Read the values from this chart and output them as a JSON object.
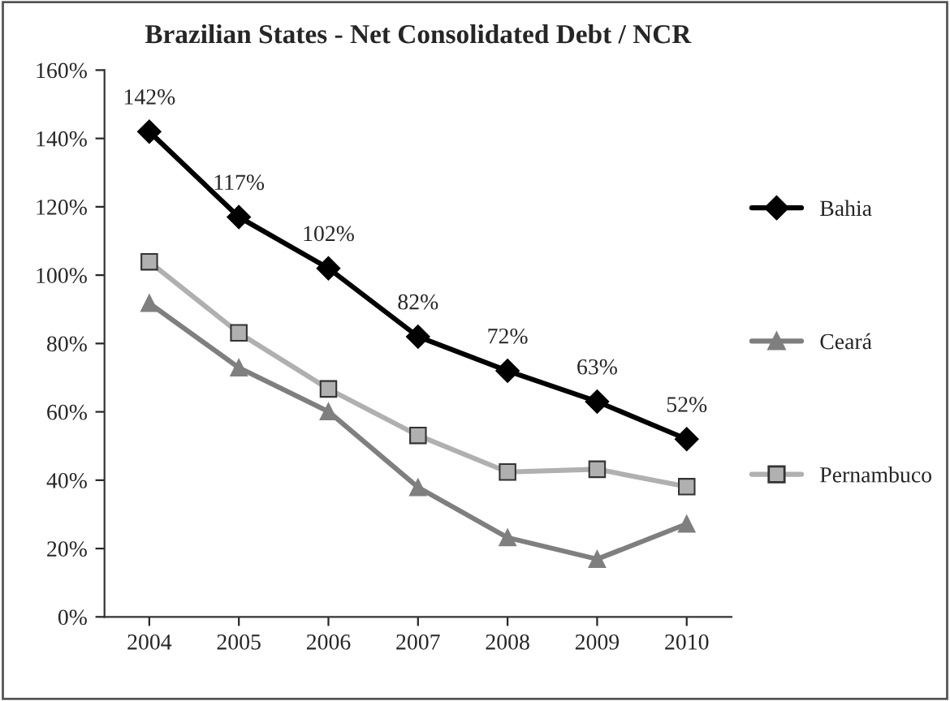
{
  "chart_data": {
    "type": "line",
    "title": "Brazilian States - Net Consolidated Debt / NCR",
    "categories": [
      "2004",
      "2005",
      "2006",
      "2007",
      "2008",
      "2009",
      "2010"
    ],
    "series": [
      {
        "name": "Bahia",
        "color": "#000000",
        "marker": "diamond",
        "values": [
          142,
          117,
          102,
          82,
          72,
          63,
          52
        ],
        "value_labels": [
          "142%",
          "117%",
          "102%",
          "82%",
          "72%",
          "63%",
          "52%"
        ]
      },
      {
        "name": "Ceará",
        "color": "#7f7f7f",
        "marker": "triangle",
        "values": [
          91.8,
          72.9,
          60.1,
          37.9,
          23.2,
          16.9,
          27.2
        ]
      },
      {
        "name": "Pernambuco",
        "color": "#b0b0b0",
        "marker": "square",
        "values": [
          103.9,
          83.1,
          66.7,
          53.1,
          42.4,
          43.2,
          38.1
        ]
      }
    ],
    "ylim": [
      0,
      160
    ],
    "yticks": [
      {
        "value": 0,
        "label": "0%"
      },
      {
        "value": 20,
        "label": "20%"
      },
      {
        "value": 40,
        "label": "40%"
      },
      {
        "value": 60,
        "label": "60%"
      },
      {
        "value": 80,
        "label": "80%"
      },
      {
        "value": 100,
        "label": "100%"
      },
      {
        "value": 120,
        "label": "120%"
      },
      {
        "value": 140,
        "label": "140%"
      },
      {
        "value": 160,
        "label": "160%"
      }
    ],
    "grid": false,
    "legend": "right"
  }
}
